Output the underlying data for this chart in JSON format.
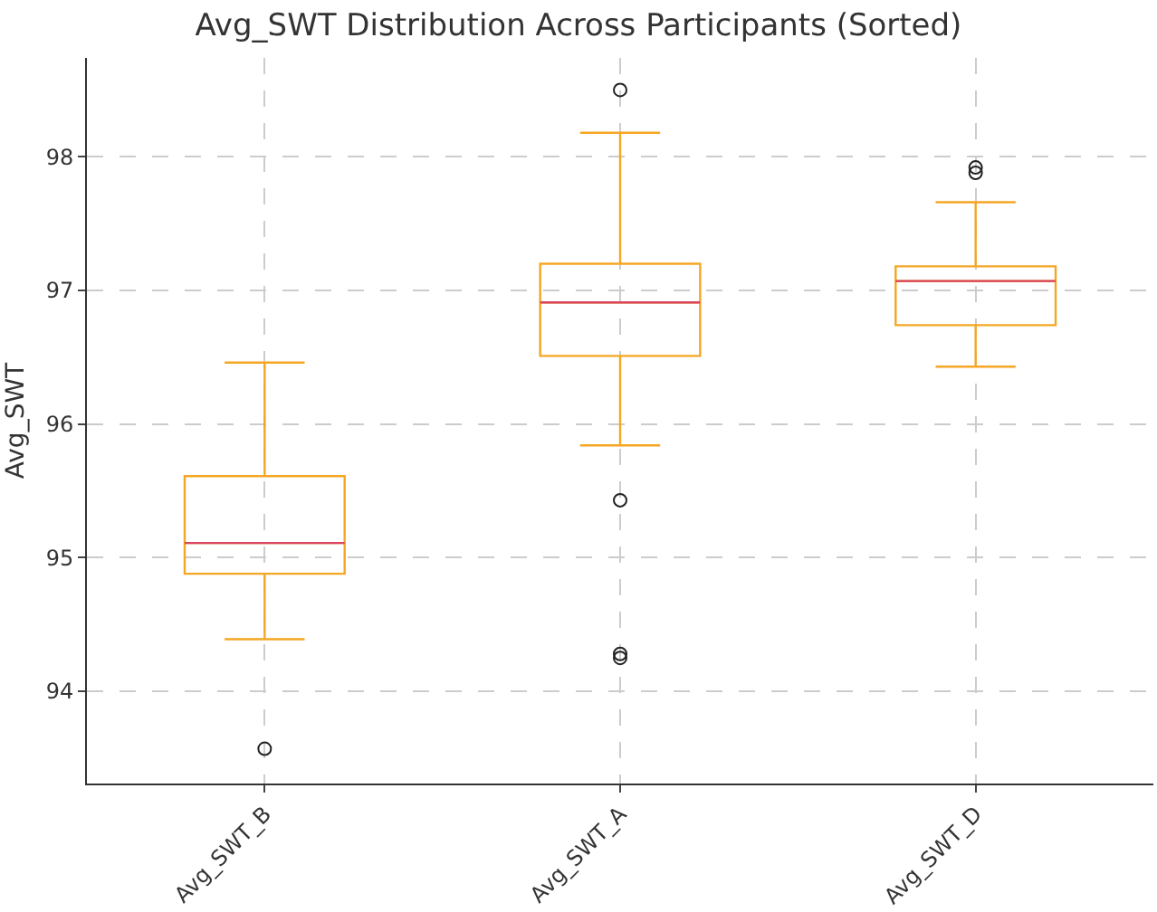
{
  "chart_data": {
    "type": "box",
    "title": "Avg_SWT Distribution Across Participants (Sorted)",
    "ylabel": "Avg_SWT",
    "categories": [
      "Avg_SWT_B",
      "Avg_SWT_A",
      "Avg_SWT_D"
    ],
    "series": [
      {
        "color": "#f5a623",
        "boxes": [
          {
            "low": 94.39,
            "q1": 94.88,
            "median": 95.11,
            "q3": 95.61,
            "high": 96.46,
            "outliers": [
              93.57
            ]
          },
          {
            "low": 95.84,
            "q1": 96.51,
            "median": 96.91,
            "q3": 97.2,
            "high": 98.18,
            "outliers": [
              98.5,
              95.43,
              94.28,
              94.25
            ]
          },
          {
            "low": 96.43,
            "q1": 96.74,
            "median": 97.07,
            "q3": 97.18,
            "high": 97.66,
            "outliers": [
              97.92,
              97.88
            ]
          }
        ]
      }
    ],
    "ylim": [
      93.31,
      98.74
    ],
    "yticks": [
      94,
      95,
      96,
      97,
      98
    ],
    "grid": true
  }
}
